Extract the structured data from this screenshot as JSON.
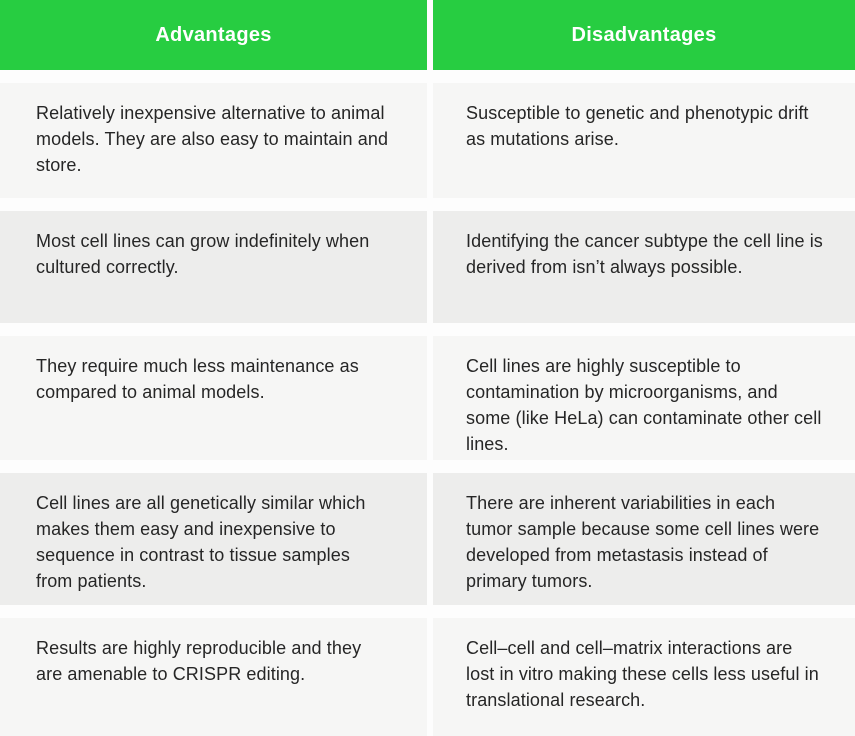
{
  "table": {
    "columns": [
      {
        "header": "Advantages"
      },
      {
        "header": "Disadvantages"
      }
    ],
    "rows": [
      {
        "advantage": "Relatively inexpensive alternative to animal models. They are also easy to maintain and store.",
        "disadvantage": "Susceptible to genetic and phenotypic drift as mutations arise."
      },
      {
        "advantage": "Most cell lines can grow indefinitely when cultured correctly.",
        "disadvantage": "Identifying the cancer subtype the cell line is derived from isn’t always possible."
      },
      {
        "advantage": "They require much less maintenance as compared to animal models.",
        "disadvantage": "Cell lines are highly susceptible to contamination by microorganisms, and some (like HeLa) can contaminate other cell lines."
      },
      {
        "advantage": "Cell lines are all genetically similar which makes them easy and inexpensive to sequence in contrast to tissue samples from patients.",
        "disadvantage": "There are inherent variabilities in each tumor sample because some cell lines were developed from metastasis instead of primary tumors."
      },
      {
        "advantage": "Results are highly reproducible and they are amenable to CRISPR editing.",
        "disadvantage": "Cell–cell and cell–matrix interactions are lost in vitro making these cells less useful in translational research."
      }
    ]
  },
  "colors": {
    "header_bg": "#27cd41",
    "header_text": "#ffffff",
    "row_bg_light": "#f6f6f5",
    "row_bg_dark": "#ededec",
    "gutter": "#fdfdfd",
    "body_text": "#262626"
  }
}
